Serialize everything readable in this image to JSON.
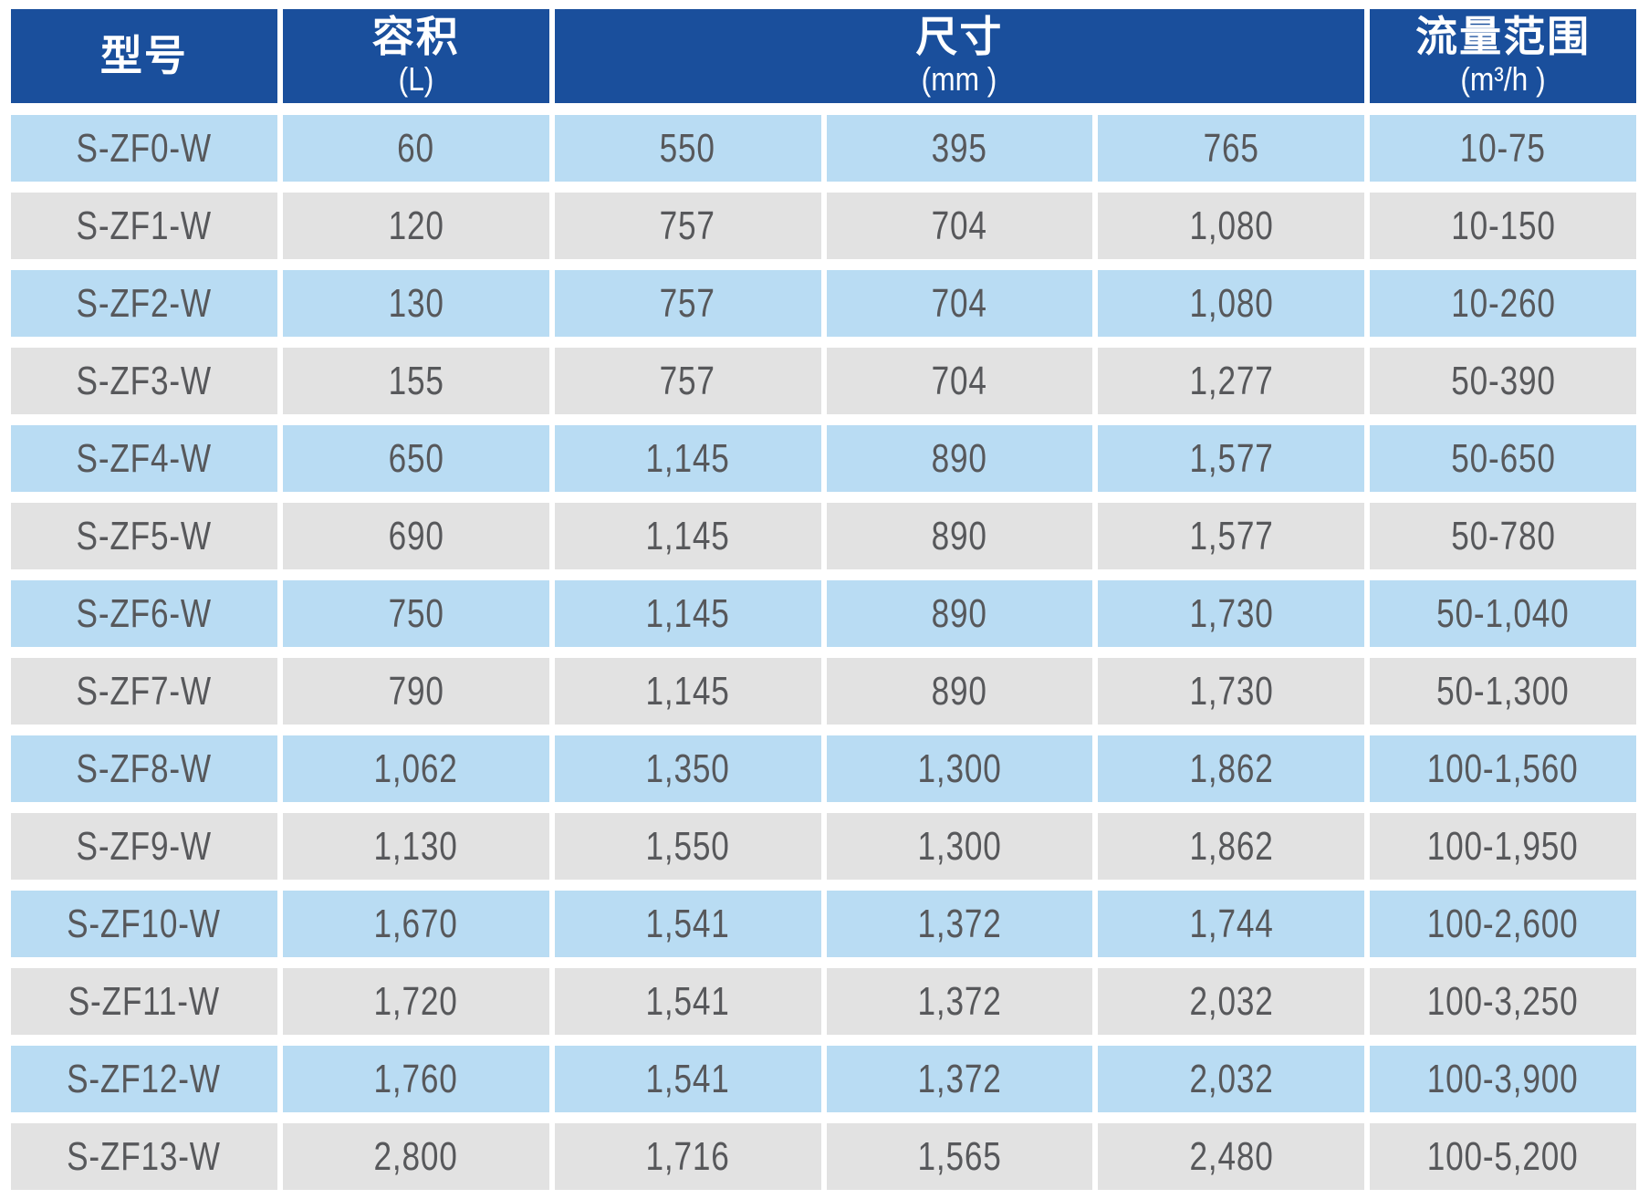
{
  "page": {
    "background": "#FFFFFF"
  },
  "colors": {
    "header_bg": "#1A4F9C",
    "header_text": "#FFFFFF",
    "row_blue_bg": "#B9DCF3",
    "row_gray_bg": "#E2E2E2",
    "cell_text": "#57585B"
  },
  "table": {
    "header": {
      "model": {
        "title": "型号",
        "unit": ""
      },
      "volume": {
        "title": "容积",
        "unit": "(L)"
      },
      "dimensions": {
        "title": "尺寸",
        "unit": "(mm )"
      },
      "flow_range": {
        "title": "流量范围",
        "unit": "(m³/h )"
      }
    },
    "rows": [
      {
        "model": "S-ZF0-W",
        "volume": "60",
        "dim1": "550",
        "dim2": "395",
        "dim3": "765",
        "flow": "10-75"
      },
      {
        "model": "S-ZF1-W",
        "volume": "120",
        "dim1": "757",
        "dim2": "704",
        "dim3": "1,080",
        "flow": "10-150"
      },
      {
        "model": "S-ZF2-W",
        "volume": "130",
        "dim1": "757",
        "dim2": "704",
        "dim3": "1,080",
        "flow": "10-260"
      },
      {
        "model": "S-ZF3-W",
        "volume": "155",
        "dim1": "757",
        "dim2": "704",
        "dim3": "1,277",
        "flow": "50-390"
      },
      {
        "model": "S-ZF4-W",
        "volume": "650",
        "dim1": "1,145",
        "dim2": "890",
        "dim3": "1,577",
        "flow": "50-650"
      },
      {
        "model": "S-ZF5-W",
        "volume": "690",
        "dim1": "1,145",
        "dim2": "890",
        "dim3": "1,577",
        "flow": "50-780"
      },
      {
        "model": "S-ZF6-W",
        "volume": "750",
        "dim1": "1,145",
        "dim2": "890",
        "dim3": "1,730",
        "flow": "50-1,040"
      },
      {
        "model": "S-ZF7-W",
        "volume": "790",
        "dim1": "1,145",
        "dim2": "890",
        "dim3": "1,730",
        "flow": "50-1,300"
      },
      {
        "model": "S-ZF8-W",
        "volume": "1,062",
        "dim1": "1,350",
        "dim2": "1,300",
        "dim3": "1,862",
        "flow": "100-1,560"
      },
      {
        "model": "S-ZF9-W",
        "volume": "1,130",
        "dim1": "1,550",
        "dim2": "1,300",
        "dim3": "1,862",
        "flow": "100-1,950"
      },
      {
        "model": "S-ZF10-W",
        "volume": "1,670",
        "dim1": "1,541",
        "dim2": "1,372",
        "dim3": "1,744",
        "flow": "100-2,600"
      },
      {
        "model": "S-ZF11-W",
        "volume": "1,720",
        "dim1": "1,541",
        "dim2": "1,372",
        "dim3": "2,032",
        "flow": "100-3,250"
      },
      {
        "model": "S-ZF12-W",
        "volume": "1,760",
        "dim1": "1,541",
        "dim2": "1,372",
        "dim3": "2,032",
        "flow": "100-3,900"
      },
      {
        "model": "S-ZF13-W",
        "volume": "2,800",
        "dim1": "1,716",
        "dim2": "1,565",
        "dim3": "2,480",
        "flow": "100-5,200"
      }
    ]
  }
}
